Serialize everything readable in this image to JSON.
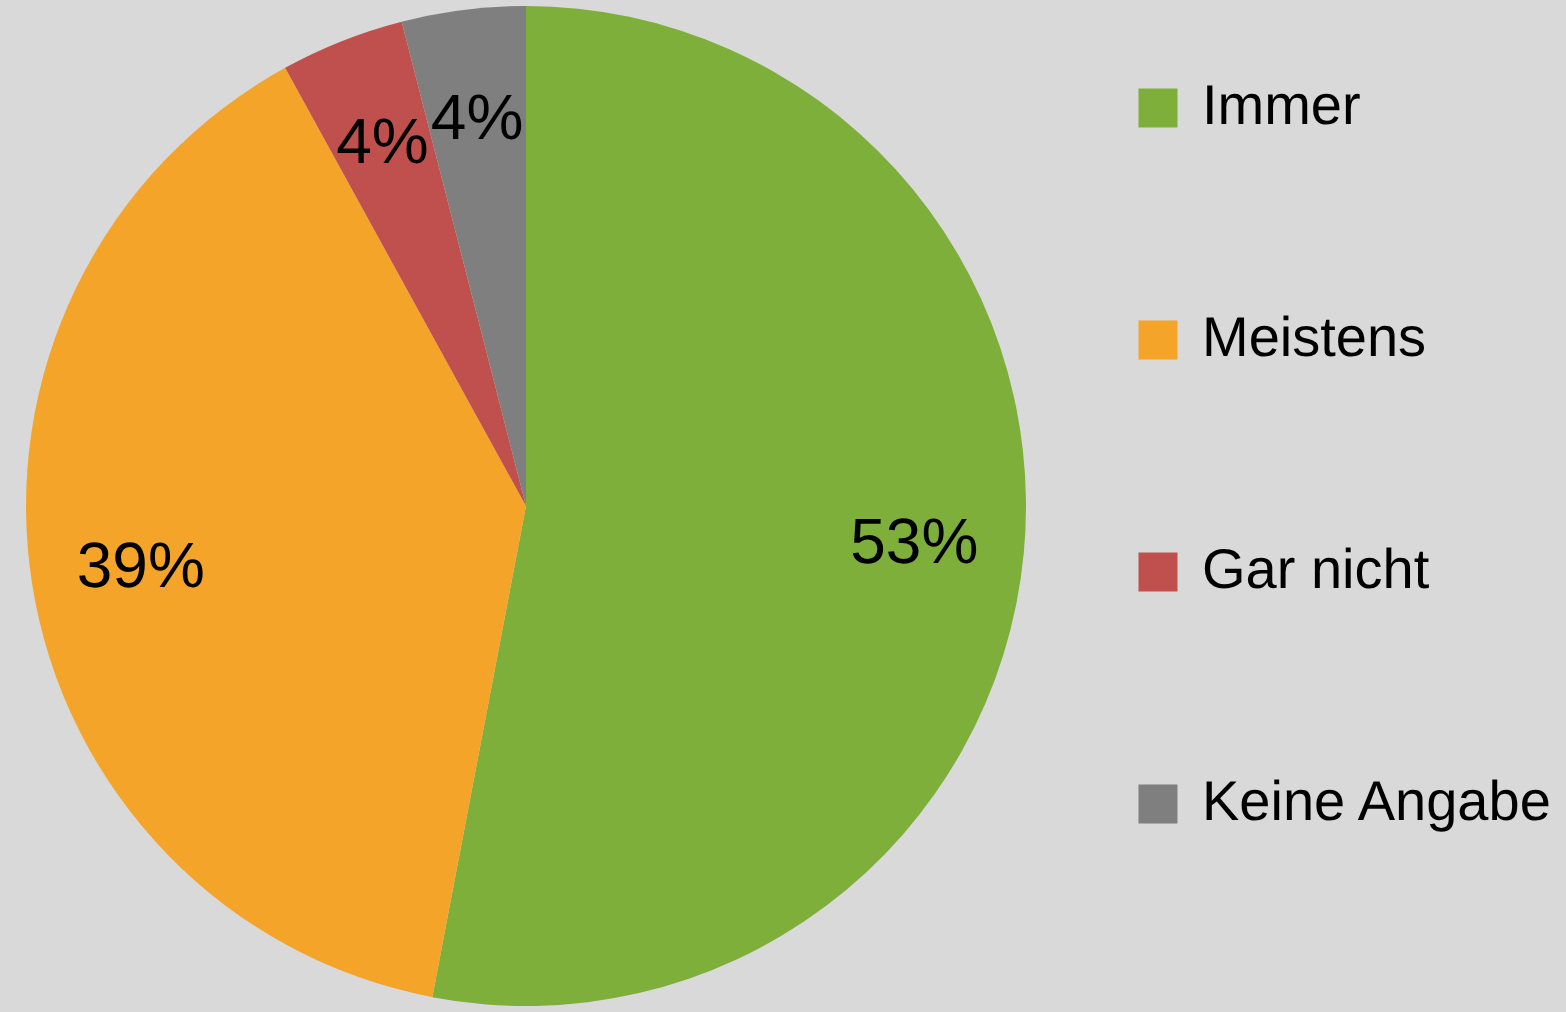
{
  "chart_data": {
    "type": "pie",
    "categories": [
      "Immer",
      "Meistens",
      "Gar nicht",
      "Keine Angabe"
    ],
    "values": [
      53,
      39,
      4,
      4
    ],
    "colors": [
      "#7daf3a",
      "#f5a42a",
      "#c0504d",
      "#7f7f7f"
    ],
    "value_labels": [
      "53%",
      "39%",
      "4%",
      "4%"
    ],
    "legend": "right"
  }
}
